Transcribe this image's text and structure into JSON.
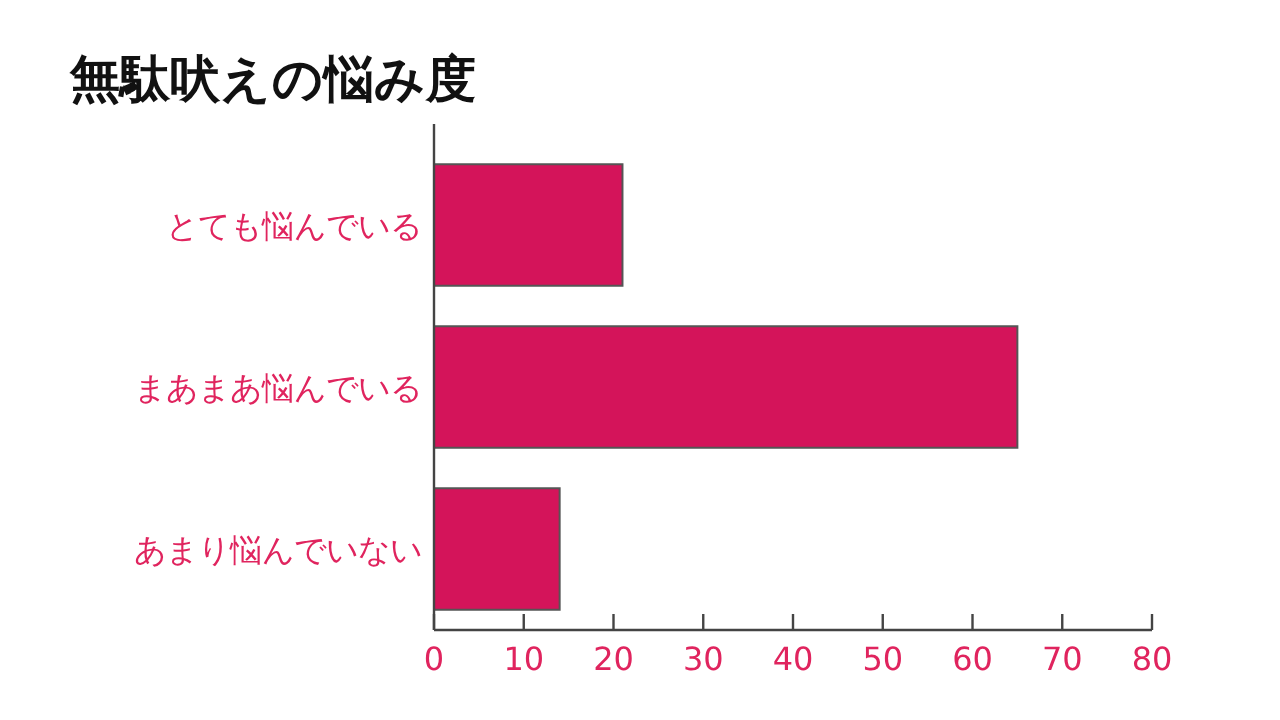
{
  "chart_data": {
    "type": "bar",
    "orientation": "horizontal",
    "title": "無駄吠えの悩み度",
    "categories": [
      "とても悩んでいる",
      "まあまあ悩んでいる",
      "あまり悩んでいない"
    ],
    "values": [
      21,
      65,
      14
    ],
    "color": "#d4145a",
    "xlim": [
      0,
      80
    ],
    "xticks": [
      0,
      10,
      20,
      30,
      40,
      50,
      60,
      70,
      80
    ]
  }
}
